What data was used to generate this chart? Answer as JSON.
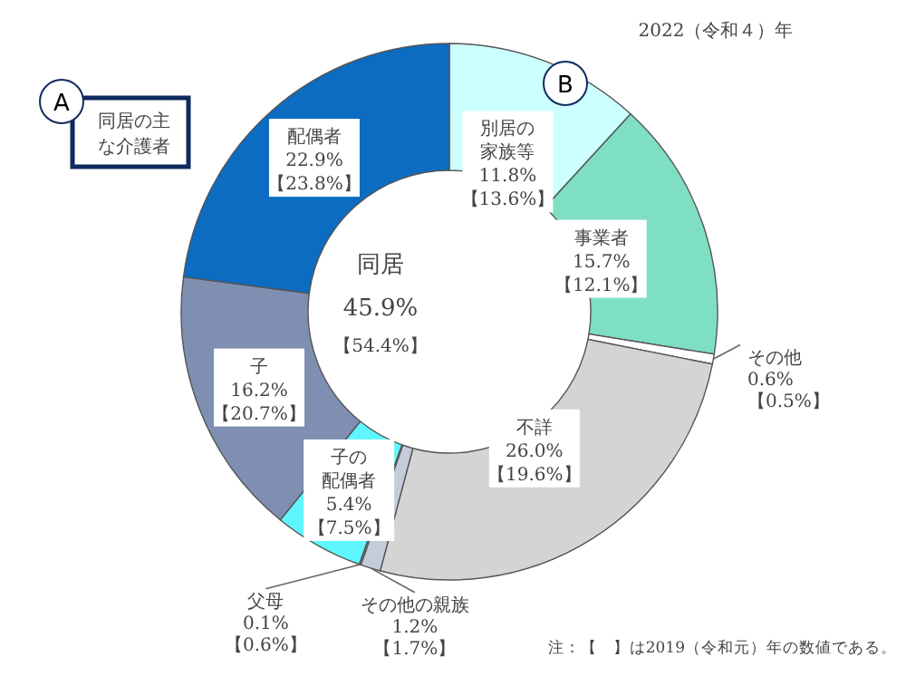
{
  "chart_data": {
    "type": "donut",
    "title": "2022（令和４）年",
    "categories": [
      "別居の家族等",
      "事業者",
      "その他",
      "不詳",
      "その他の親族",
      "父母",
      "子の配偶者",
      "子",
      "配偶者"
    ],
    "values": [
      11.8,
      15.7,
      0.6,
      26.0,
      1.2,
      0.1,
      5.4,
      16.2,
      22.9
    ],
    "value_labels": [
      "11.8%",
      "15.7%",
      "0.6%",
      "26.0%",
      "1.2%",
      "0.1%",
      "5.4%",
      "16.2%",
      "22.9%"
    ],
    "colors": [
      "#ccffff",
      "#7fdfc4",
      "#ffffff",
      "#d4d4d4",
      "#c4ccdc",
      "#9aa4c0",
      "#5ff6ff",
      "#7f8fb2",
      "#0b6cc2"
    ],
    "annotations": [
      "【13.6%】",
      "【12.1%】",
      "【0.5%】",
      "【19.6%】",
      "【1.7%】",
      "【0.6%】",
      "【7.5%】",
      "【20.7%】",
      "【23.8%】",
      "同居",
      "45.9%",
      "【54.4%】",
      "A",
      "同居の主な介護者",
      "B",
      "注：【　】は2019（令和元）年の数値である。"
    ]
  }
}
